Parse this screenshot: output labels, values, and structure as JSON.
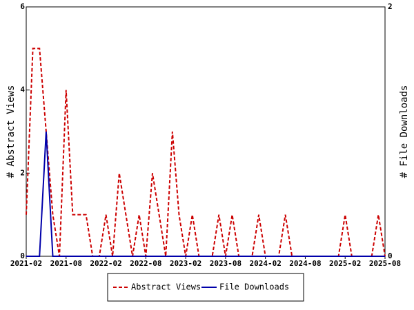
{
  "chart_data": {
    "type": "line",
    "categories": [
      "2021-02",
      null,
      null,
      null,
      null,
      null,
      "2021-08",
      null,
      null,
      null,
      null,
      null,
      "2022-02",
      null,
      null,
      null,
      null,
      null,
      "2022-08",
      null,
      null,
      null,
      null,
      null,
      "2023-02",
      null,
      null,
      null,
      null,
      null,
      "2023-08",
      null,
      null,
      null,
      null,
      null,
      "2024-02",
      null,
      null,
      null,
      null,
      null,
      "2024-08",
      null,
      null,
      null,
      null,
      null,
      "2025-02",
      null,
      null,
      null,
      null,
      null,
      "2025-08"
    ],
    "series": [
      {
        "name": "Abstract Views",
        "color": "#cc0000",
        "values": [
          1,
          5,
          5,
          3,
          1,
          0,
          4,
          1,
          1,
          1,
          0,
          0,
          1,
          0,
          2,
          1,
          0,
          1,
          0,
          2,
          1,
          0,
          3,
          1,
          0,
          1,
          0,
          0,
          0,
          1,
          0,
          1,
          0,
          0,
          0,
          1,
          0,
          0,
          0,
          1,
          0,
          0,
          0,
          0,
          0,
          0,
          0,
          0,
          1,
          0,
          0,
          0,
          0,
          1,
          0
        ]
      },
      {
        "name": "File Downloads",
        "color": "#0000aa",
        "axis": "y2",
        "values": [
          0,
          0,
          0,
          1,
          0,
          0,
          0,
          0,
          0,
          0,
          0,
          0,
          0,
          0,
          0,
          0,
          0,
          0,
          0,
          0,
          0,
          0,
          0,
          0,
          0,
          0,
          0,
          0,
          0,
          0,
          0,
          0,
          0,
          0,
          0,
          0,
          0,
          0,
          0,
          0,
          0,
          0,
          0,
          0,
          0,
          0,
          0,
          0,
          0,
          0,
          0,
          0,
          0,
          0,
          0
        ]
      }
    ],
    "ylabel": "# Abstract Views",
    "y2label": "# File Downloads",
    "ylim": [
      0,
      6
    ],
    "yticks": [
      0,
      2,
      4,
      6
    ],
    "y2lim": [
      0,
      2
    ],
    "y2ticks": [
      0,
      2
    ]
  }
}
